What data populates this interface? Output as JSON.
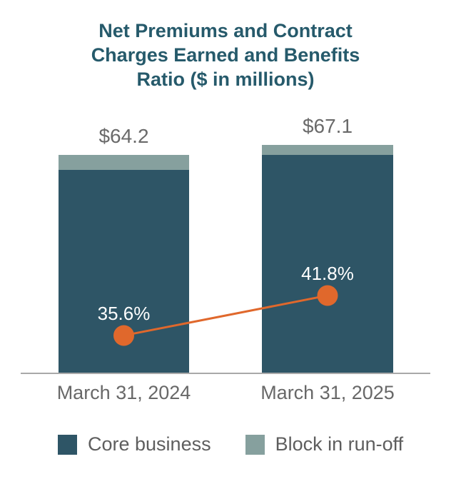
{
  "chart_data": {
    "type": "bar",
    "subtype": "stacked-bars-with-ratio-line",
    "title": "Net Premiums and Contract Charges Earned and Benefits Ratio ($ in millions)",
    "title_lines": [
      "Net Premiums and Contract",
      "Charges Earned and Benefits",
      "Ratio ($ in millions)"
    ],
    "categories": [
      "March 31, 2024",
      "March 31, 2025"
    ],
    "series": [
      {
        "name": "Core business",
        "color": "#2E5566",
        "values": [
          59.8,
          64.2
        ]
      },
      {
        "name": "Block in run-off",
        "color": "#86A09E",
        "values": [
          4.4,
          2.9
        ]
      }
    ],
    "totals": {
      "values": [
        64.2,
        67.1
      ],
      "labels": [
        "$64.2",
        "$67.1"
      ]
    },
    "line_series": {
      "name": "Benefits Ratio",
      "color": "#E0682C",
      "values": [
        35.6,
        41.8
      ],
      "labels": [
        "35.6%",
        "41.8%"
      ]
    },
    "legend": [
      {
        "label": "Core business",
        "color": "#2E5566"
      },
      {
        "label": "Block in run-off",
        "color": "#86A09E"
      }
    ],
    "colors": {
      "title": "#265A6B",
      "value_label": "#6A6A6A",
      "axis_label": "#686868",
      "baseline": "#A9A9A9",
      "ratio_label": "#ffffff"
    },
    "layout_hints": {
      "grid": false,
      "legend_position": "bottom",
      "value_labels": "above-bars"
    }
  }
}
